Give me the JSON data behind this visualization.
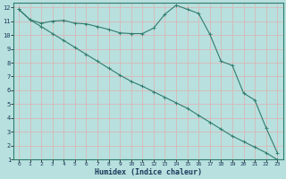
{
  "xlabel": "Humidex (Indice chaleur)",
  "line_color": "#2e7d6e",
  "bg_color": "#b8e0de",
  "grid_color": "#d8b8b8",
  "xlim": [
    -0.5,
    23.5
  ],
  "ylim": [
    1,
    12.3
  ],
  "series1_x": [
    0,
    1,
    2,
    3,
    4,
    5,
    6,
    7,
    8,
    9,
    10,
    11,
    12,
    13,
    14,
    15,
    16,
    17,
    18,
    19,
    20,
    21,
    22,
    23
  ],
  "series1_y": [
    11.85,
    11.1,
    10.85,
    11.0,
    11.05,
    10.85,
    10.8,
    10.6,
    10.4,
    10.15,
    10.1,
    10.1,
    10.5,
    11.5,
    12.15,
    11.85,
    11.55,
    10.05,
    8.1,
    7.8,
    5.8,
    5.3,
    3.3,
    1.5
  ],
  "series2_x": [
    0,
    1,
    2,
    3,
    4,
    5,
    6,
    7,
    8,
    9,
    10,
    11,
    12,
    13,
    14,
    15,
    16,
    17,
    18,
    19,
    20,
    21,
    22,
    23
  ],
  "series2_y": [
    11.85,
    11.1,
    10.6,
    10.1,
    9.6,
    9.1,
    8.6,
    8.1,
    7.6,
    7.1,
    6.65,
    6.3,
    5.9,
    5.5,
    5.1,
    4.7,
    4.2,
    3.7,
    3.2,
    2.7,
    2.3,
    1.9,
    1.5,
    1.0
  ],
  "xtick_fontsize": 4.5,
  "ytick_fontsize": 5,
  "xlabel_fontsize": 6,
  "marker_size": 1.8,
  "line_width": 0.8
}
